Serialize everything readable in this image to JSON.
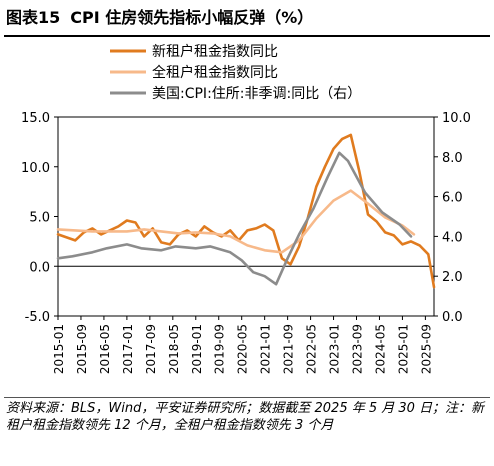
{
  "figure": {
    "label": "图表15",
    "title": "CPI 住房领先指标小幅反弹（%）",
    "source": "资料来源：BLS，Wind，平安证券研究所；数据截至 2025 年 5 月 30 日；注：新租户租金指数领先 12 个月，全租户租金指数领先 3 个月"
  },
  "chart_data": {
    "type": "line",
    "x_ticks": [
      "2015-01",
      "2015-09",
      "2016-05",
      "2017-01",
      "2017-09",
      "2018-05",
      "2019-01",
      "2019-09",
      "2020-05",
      "2021-01",
      "2021-09",
      "2022-05",
      "2023-01",
      "2023-09",
      "2024-05",
      "2025-01",
      "2025-09"
    ],
    "x_range": [
      "2015-01",
      "2025-12"
    ],
    "y_left": {
      "ylim": [
        -5.0,
        15.0
      ],
      "ticks": [
        "-5.0",
        "0.0",
        "5.0",
        "10.0",
        "15.0"
      ]
    },
    "y_right": {
      "ylim": [
        0.0,
        10.0
      ],
      "ticks": [
        "0.0",
        "2.0",
        "4.0",
        "6.0",
        "8.0",
        "10.0"
      ]
    },
    "legend_position": "top-left",
    "series": [
      {
        "name": "新租户租金指数同比",
        "axis": "left",
        "color": "#e07b1f",
        "points": [
          [
            "2015-01",
            3.2
          ],
          [
            "2015-04",
            2.9
          ],
          [
            "2015-07",
            2.6
          ],
          [
            "2015-10",
            3.4
          ],
          [
            "2016-01",
            3.8
          ],
          [
            "2016-04",
            3.2
          ],
          [
            "2016-07",
            3.6
          ],
          [
            "2016-10",
            4.0
          ],
          [
            "2017-01",
            4.6
          ],
          [
            "2017-04",
            4.4
          ],
          [
            "2017-07",
            3.0
          ],
          [
            "2017-10",
            3.8
          ],
          [
            "2018-01",
            2.4
          ],
          [
            "2018-04",
            2.2
          ],
          [
            "2018-07",
            3.2
          ],
          [
            "2018-10",
            3.6
          ],
          [
            "2019-01",
            3.0
          ],
          [
            "2019-04",
            4.0
          ],
          [
            "2019-07",
            3.4
          ],
          [
            "2019-10",
            3.0
          ],
          [
            "2020-01",
            3.6
          ],
          [
            "2020-04",
            2.6
          ],
          [
            "2020-07",
            3.6
          ],
          [
            "2020-10",
            3.8
          ],
          [
            "2021-01",
            4.2
          ],
          [
            "2021-04",
            3.6
          ],
          [
            "2021-07",
            0.8
          ],
          [
            "2021-10",
            0.2
          ],
          [
            "2022-01",
            2.0
          ],
          [
            "2022-04",
            4.8
          ],
          [
            "2022-07",
            8.0
          ],
          [
            "2022-10",
            10.0
          ],
          [
            "2023-01",
            11.8
          ],
          [
            "2023-04",
            12.8
          ],
          [
            "2023-07",
            13.2
          ],
          [
            "2023-10",
            9.5
          ],
          [
            "2024-01",
            5.2
          ],
          [
            "2024-04",
            4.5
          ],
          [
            "2024-07",
            3.4
          ],
          [
            "2024-10",
            3.1
          ],
          [
            "2025-01",
            2.2
          ],
          [
            "2025-04",
            2.5
          ],
          [
            "2025-07",
            2.1
          ],
          [
            "2025-10",
            1.2
          ],
          [
            "2025-12",
            -2.1
          ]
        ]
      },
      {
        "name": "全租户租金指数同比",
        "axis": "left",
        "color": "#f7b98a",
        "points": [
          [
            "2015-01",
            3.7
          ],
          [
            "2015-07",
            3.6
          ],
          [
            "2016-01",
            3.5
          ],
          [
            "2016-07",
            3.5
          ],
          [
            "2017-01",
            3.5
          ],
          [
            "2017-07",
            3.7
          ],
          [
            "2018-01",
            3.5
          ],
          [
            "2018-07",
            3.3
          ],
          [
            "2019-01",
            3.4
          ],
          [
            "2019-07",
            3.3
          ],
          [
            "2020-01",
            3.0
          ],
          [
            "2020-07",
            2.1
          ],
          [
            "2021-01",
            1.6
          ],
          [
            "2021-07",
            1.4
          ],
          [
            "2022-01",
            2.6
          ],
          [
            "2022-07",
            4.8
          ],
          [
            "2023-01",
            6.6
          ],
          [
            "2023-07",
            7.6
          ],
          [
            "2024-01",
            6.3
          ],
          [
            "2024-07",
            4.9
          ],
          [
            "2025-01",
            4.1
          ],
          [
            "2025-05",
            3.2
          ]
        ]
      },
      {
        "name": "美国:CPI:住所:非季调:同比（右）",
        "axis": "right",
        "color": "#8c8c8c",
        "points": [
          [
            "2015-01",
            2.9
          ],
          [
            "2015-06",
            3.0
          ],
          [
            "2016-01",
            3.2
          ],
          [
            "2016-06",
            3.4
          ],
          [
            "2017-01",
            3.6
          ],
          [
            "2017-06",
            3.4
          ],
          [
            "2018-01",
            3.3
          ],
          [
            "2018-06",
            3.5
          ],
          [
            "2019-01",
            3.4
          ],
          [
            "2019-06",
            3.5
          ],
          [
            "2020-01",
            3.2
          ],
          [
            "2020-05",
            2.8
          ],
          [
            "2020-09",
            2.2
          ],
          [
            "2021-01",
            2.0
          ],
          [
            "2021-05",
            1.6
          ],
          [
            "2021-09",
            2.9
          ],
          [
            "2022-01",
            4.1
          ],
          [
            "2022-06",
            5.4
          ],
          [
            "2022-11",
            7.0
          ],
          [
            "2023-03",
            8.2
          ],
          [
            "2023-06",
            7.8
          ],
          [
            "2023-12",
            6.2
          ],
          [
            "2024-06",
            5.2
          ],
          [
            "2024-12",
            4.6
          ],
          [
            "2025-04",
            4.0
          ]
        ]
      }
    ]
  }
}
